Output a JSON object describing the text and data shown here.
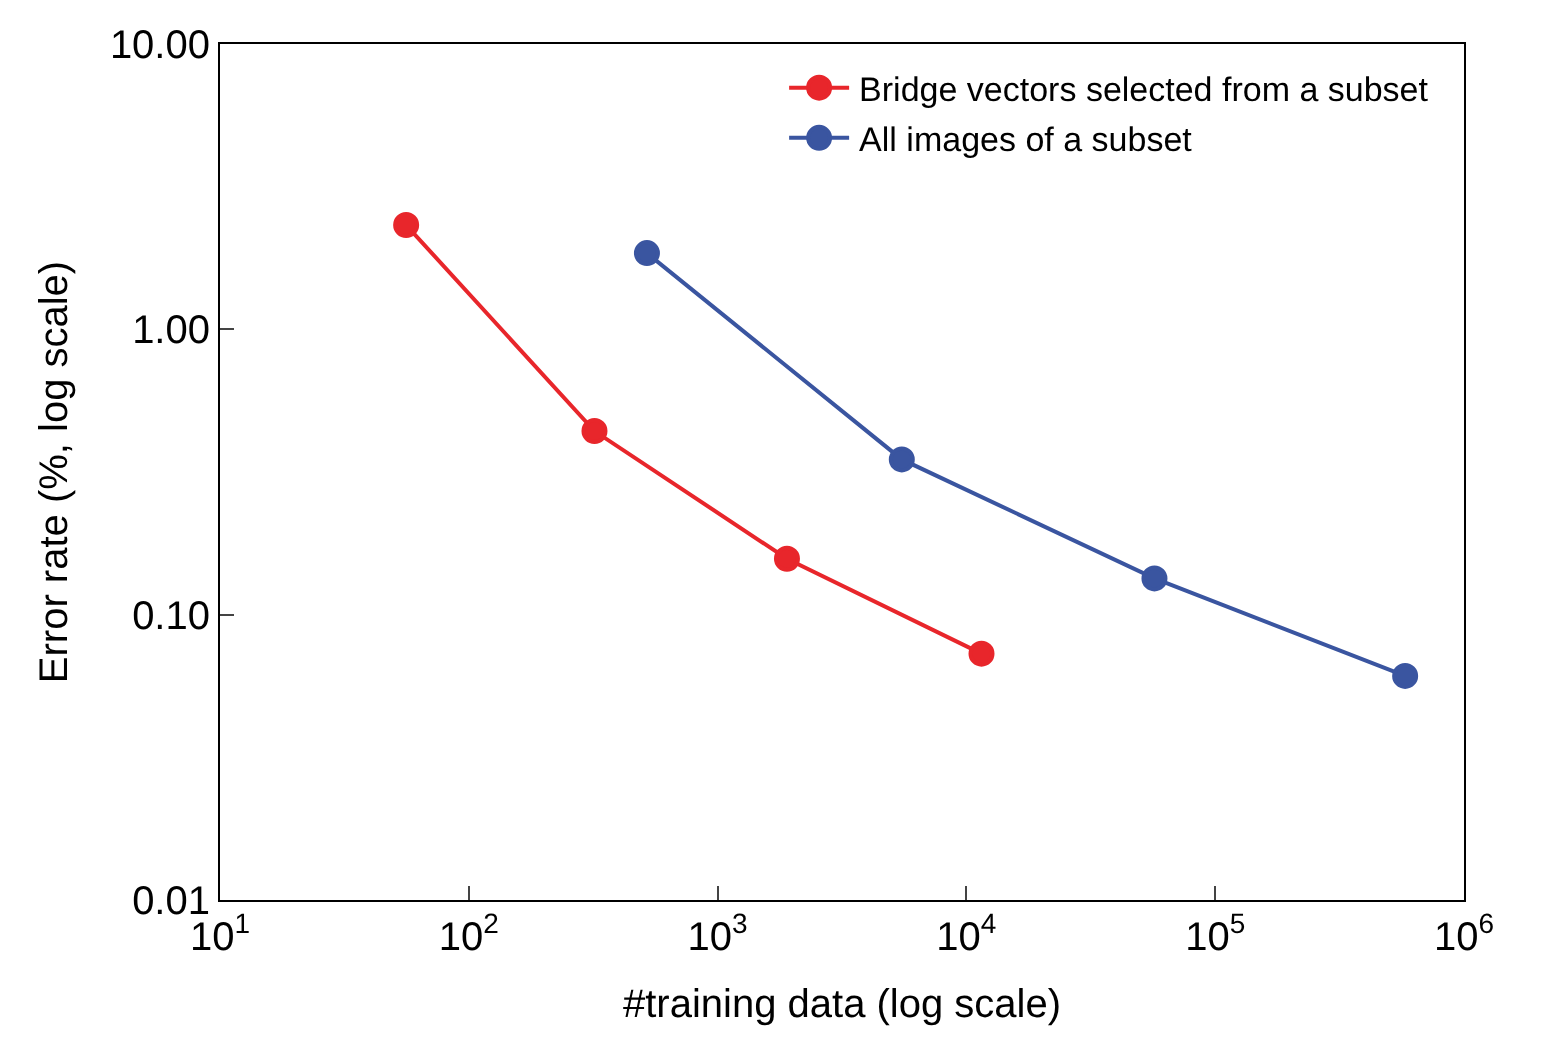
{
  "chart_data": {
    "type": "line",
    "xlabel": "#training data (log scale)",
    "ylabel": "Error rate (%, log scale)",
    "log": "xy",
    "legend": "top right",
    "marker": "circle",
    "line_style": "solid",
    "xlim": [
      10,
      1000000
    ],
    "ylim": [
      0.01,
      10
    ],
    "xticks": [
      {
        "value": 10,
        "label": "10$^{1}$"
      },
      {
        "value": 100,
        "label": "10$^{2}$"
      },
      {
        "value": 1000,
        "label": "10$^{3}$"
      },
      {
        "value": 10000,
        "label": "10$^{4}$"
      },
      {
        "value": 100000,
        "label": "10$^{5}$"
      },
      {
        "value": 1000000,
        "label": "10$^{6}$"
      }
    ],
    "yticks": [
      {
        "value": 0.01,
        "label": "0.01"
      },
      {
        "value": 0.1,
        "label": "0.10"
      },
      {
        "value": 1,
        "label": "1.00"
      },
      {
        "value": 10,
        "label": "10.00"
      }
    ],
    "series": [
      {
        "name": "Bridge vectors selected from a subset",
        "color": "#e8262b",
        "x": [
          56,
          320,
          1900,
          11500
        ],
        "values": [
          2.32,
          0.44,
          0.157,
          0.073
        ]
      },
      {
        "name": "All images of a subset",
        "color": "#3a55a0",
        "x": [
          520,
          5500,
          57000,
          580000
        ],
        "values": [
          1.85,
          0.35,
          0.134,
          0.061
        ]
      }
    ]
  }
}
